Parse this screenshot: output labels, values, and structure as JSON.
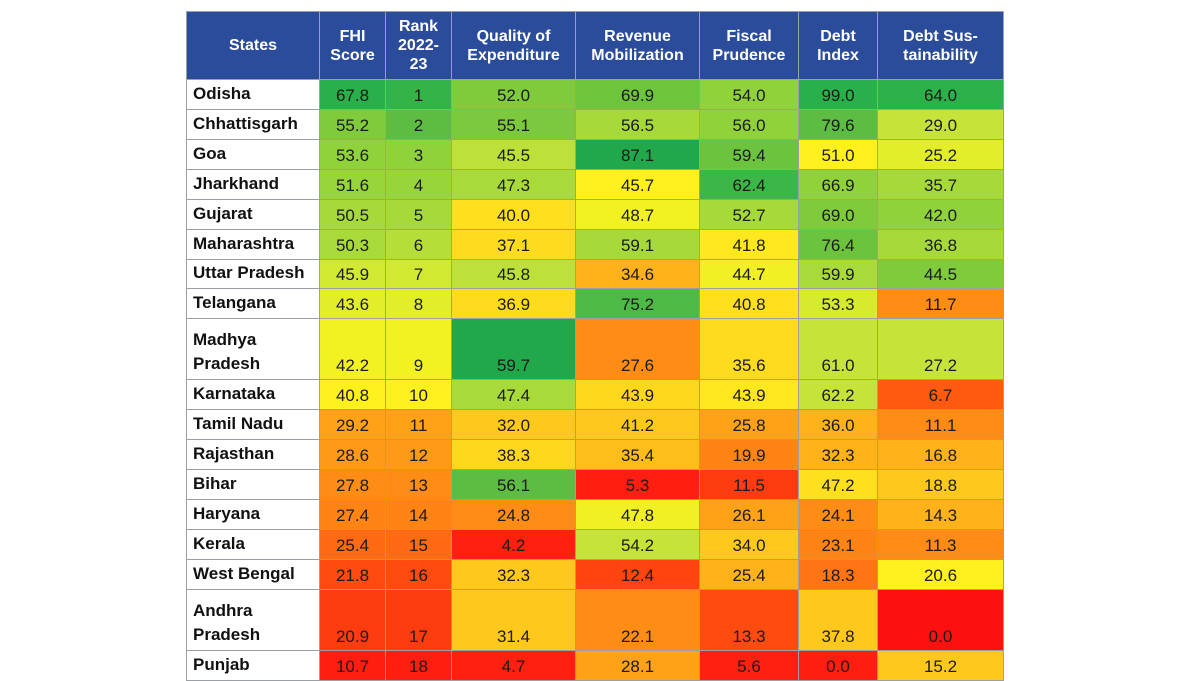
{
  "chart_data": {
    "type": "heatmap",
    "title": "",
    "columns": [
      "States",
      "FHI Score",
      "Rank 2022-23",
      "Quality of Expenditure",
      "Revenue Mobilization",
      "Fiscal Prudence",
      "Debt Index",
      "Debt Sus-tainability"
    ],
    "header_lines": [
      [
        "States"
      ],
      [
        "FHI",
        "Score"
      ],
      [
        "Rank",
        "2022-",
        "23"
      ],
      [
        "Quality of",
        "Expenditure"
      ],
      [
        "Revenue",
        "Mobilization"
      ],
      [
        "Fiscal",
        "Prudence"
      ],
      [
        "Debt",
        "Index"
      ],
      [
        "Debt Sus-",
        "tainability"
      ]
    ],
    "rows": [
      {
        "state": [
          "Odisha"
        ],
        "values": [
          "67.8",
          "1",
          "52.0",
          "69.9",
          "54.0",
          "99.0",
          "64.0"
        ]
      },
      {
        "state": [
          "Chhattisgarh"
        ],
        "values": [
          "55.2",
          "2",
          "55.1",
          "56.5",
          "56.0",
          "79.6",
          "29.0"
        ]
      },
      {
        "state": [
          "Goa"
        ],
        "values": [
          "53.6",
          "3",
          "45.5",
          "87.1",
          "59.4",
          "51.0",
          "25.2"
        ]
      },
      {
        "state": [
          "Jharkhand"
        ],
        "values": [
          "51.6",
          "4",
          "47.3",
          "45.7",
          "62.4",
          "66.9",
          "35.7"
        ]
      },
      {
        "state": [
          "Gujarat"
        ],
        "values": [
          "50.5",
          "5",
          "40.0",
          "48.7",
          "52.7",
          "69.0",
          "42.0"
        ]
      },
      {
        "state": [
          "Maharashtra"
        ],
        "values": [
          "50.3",
          "6",
          "37.1",
          "59.1",
          "41.8",
          "76.4",
          "36.8"
        ]
      },
      {
        "state": [
          "Uttar Pradesh"
        ],
        "values": [
          "45.9",
          "7",
          "45.8",
          "34.6",
          "44.7",
          "59.9",
          "44.5"
        ]
      },
      {
        "state": [
          "Telangana"
        ],
        "values": [
          "43.6",
          "8",
          "36.9",
          "75.2",
          "40.8",
          "53.3",
          "11.7"
        ]
      },
      {
        "state": [
          "Madhya",
          "Pradesh"
        ],
        "values": [
          "42.2",
          "9",
          "59.7",
          "27.6",
          "35.6",
          "61.0",
          "27.2"
        ]
      },
      {
        "state": [
          "Karnataka"
        ],
        "values": [
          "40.8",
          "10",
          "47.4",
          "43.9",
          "43.9",
          "62.2",
          "6.7"
        ]
      },
      {
        "state": [
          "Tamil Nadu"
        ],
        "values": [
          "29.2",
          "11",
          "32.0",
          "41.2",
          "25.8",
          "36.0",
          "11.1"
        ]
      },
      {
        "state": [
          "Rajasthan"
        ],
        "values": [
          "28.6",
          "12",
          "38.3",
          "35.4",
          "19.9",
          "32.3",
          "16.8"
        ]
      },
      {
        "state": [
          "Bihar"
        ],
        "values": [
          "27.8",
          "13",
          "56.1",
          "5.3",
          "11.5",
          "47.2",
          "18.8"
        ]
      },
      {
        "state": [
          "Haryana"
        ],
        "values": [
          "27.4",
          "14",
          "24.8",
          "47.8",
          "26.1",
          "24.1",
          "14.3"
        ]
      },
      {
        "state": [
          "Kerala"
        ],
        "values": [
          "25.4",
          "15",
          "4.2",
          "54.2",
          "34.0",
          "23.1",
          "11.3"
        ]
      },
      {
        "state": [
          "West Bengal"
        ],
        "values": [
          "21.8",
          "16",
          "32.3",
          "12.4",
          "25.4",
          "18.3",
          "20.6"
        ]
      },
      {
        "state": [
          "Andhra",
          "Pradesh"
        ],
        "values": [
          "20.9",
          "17",
          "31.4",
          "22.1",
          "13.3",
          "37.8",
          "0.0"
        ]
      },
      {
        "state": [
          "Punjab"
        ],
        "values": [
          "10.7",
          "18",
          "4.7",
          "28.1",
          "5.6",
          "0.0",
          "15.2"
        ]
      }
    ],
    "colors": {
      "header_bg": "#2b4c9b",
      "header_text": "#ffffff",
      "state_bg": "#ffffff",
      "border": "#9aa0a6"
    },
    "cell_colors": [
      [
        "#2ab04a",
        "#34b448",
        "#7fcb3c",
        "#6fc43e",
        "#8fd23c",
        "#2ab04a",
        "#2cb14a"
      ],
      [
        "#7fcb3c",
        "#5cbd42",
        "#7cc93d",
        "#a6d93a",
        "#8fd23c",
        "#5cbd42",
        "#c6e33a"
      ],
      [
        "#8fd23c",
        "#8fd23c",
        "#bde13a",
        "#21a84a",
        "#6cc33e",
        "#fff01e",
        "#e2ee2a"
      ],
      [
        "#98d53b",
        "#98d53b",
        "#a8db3a",
        "#fff01e",
        "#3cb646",
        "#8fd23c",
        "#a6d93a"
      ],
      [
        "#a6d93a",
        "#a6d93a",
        "#ffe01e",
        "#f2f222",
        "#a6d93a",
        "#7fcb3c",
        "#8fd23c"
      ],
      [
        "#a8db3a",
        "#b6de3a",
        "#ffdb1e",
        "#a6d93a",
        "#ffe81e",
        "#6cc33e",
        "#a6d93a"
      ],
      [
        "#d2e932",
        "#d2e932",
        "#bde13a",
        "#ffb21a",
        "#f0f024",
        "#a8db3a",
        "#7fcb3c"
      ],
      [
        "#e2ee2a",
        "#e2ee2a",
        "#ffdb1e",
        "#4cba44",
        "#ffe01e",
        "#d7eb2e",
        "#ff8c14"
      ],
      [
        "#f2f222",
        "#f2f222",
        "#21a84a",
        "#ff8c14",
        "#ffdb1e",
        "#c6e33a",
        "#c6e33a"
      ],
      [
        "#fff01e",
        "#fff01e",
        "#a8db3a",
        "#ffd81e",
        "#ffe81e",
        "#c6e33a",
        "#ff5a10"
      ],
      [
        "#ffa218",
        "#ffa218",
        "#ffc81c",
        "#ffc81c",
        "#ffa218",
        "#ffb21a",
        "#ff8c14"
      ],
      [
        "#ff9a16",
        "#ff9a16",
        "#ffd81e",
        "#ffbd1c",
        "#ff8414",
        "#ffb21a",
        "#ffb21a"
      ],
      [
        "#ff8c14",
        "#ff8c14",
        "#5cbd42",
        "#ff1e10",
        "#ff3c10",
        "#ffe01e",
        "#ffc81c"
      ],
      [
        "#ff8414",
        "#ff8414",
        "#ff8c14",
        "#f0f024",
        "#ffa218",
        "#ff8c14",
        "#ffb21a"
      ],
      [
        "#ff6a12",
        "#ff6a12",
        "#ff2010",
        "#c6e33a",
        "#ffc81c",
        "#ff8414",
        "#ff8c14"
      ],
      [
        "#ff4a10",
        "#ff4a10",
        "#ffc81c",
        "#ff4410",
        "#ffb21a",
        "#ff7414",
        "#fff01e"
      ],
      [
        "#ff3c10",
        "#ff3c10",
        "#ffc81c",
        "#ff8c14",
        "#ff4a10",
        "#ffc81c",
        "#ff1010"
      ],
      [
        "#ff1e10",
        "#ff1e10",
        "#ff2010",
        "#ffa218",
        "#ff2010",
        "#ff1e10",
        "#ffc81c"
      ]
    ]
  }
}
